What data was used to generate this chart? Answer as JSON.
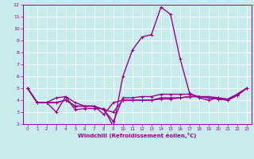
{
  "title": "",
  "xlabel": "Windchill (Refroidissement éolien,°C)",
  "ylabel": "",
  "bg_color": "#c8ecec",
  "line_color": "#990099",
  "grid_color": "#ffffff",
  "text_color": "#990099",
  "xlim": [
    -0.5,
    23.5
  ],
  "ylim": [
    2,
    12
  ],
  "xticks": [
    0,
    1,
    2,
    3,
    4,
    5,
    6,
    7,
    8,
    9,
    10,
    11,
    12,
    13,
    14,
    15,
    16,
    17,
    18,
    19,
    20,
    21,
    22,
    23
  ],
  "yticks": [
    2,
    3,
    4,
    5,
    6,
    7,
    8,
    9,
    10,
    11,
    12
  ],
  "series": [
    [
      5.0,
      3.8,
      3.8,
      3.0,
      4.3,
      3.2,
      3.3,
      3.3,
      3.3,
      1.8,
      6.0,
      8.2,
      9.3,
      9.5,
      11.8,
      11.2,
      7.5,
      4.6,
      4.2,
      4.0,
      4.2,
      4.0,
      4.5,
      5.0
    ],
    [
      5.0,
      3.8,
      3.8,
      4.2,
      4.3,
      3.8,
      3.5,
      3.5,
      2.8,
      3.8,
      4.0,
      4.0,
      4.0,
      4.0,
      4.2,
      4.2,
      4.2,
      4.3,
      4.3,
      4.3,
      4.2,
      4.1,
      4.5,
      5.0
    ],
    [
      5.0,
      3.8,
      3.8,
      3.8,
      4.0,
      3.5,
      3.5,
      3.5,
      3.2,
      3.0,
      4.0,
      4.0,
      4.0,
      4.0,
      4.1,
      4.1,
      4.2,
      4.3,
      4.3,
      4.2,
      4.1,
      4.0,
      4.4,
      5.0
    ],
    [
      5.0,
      3.8,
      3.8,
      3.8,
      4.0,
      3.5,
      3.5,
      3.5,
      3.2,
      2.2,
      4.2,
      4.2,
      4.3,
      4.3,
      4.5,
      4.5,
      4.5,
      4.5,
      4.3,
      4.2,
      4.1,
      4.0,
      4.4,
      5.0
    ]
  ]
}
